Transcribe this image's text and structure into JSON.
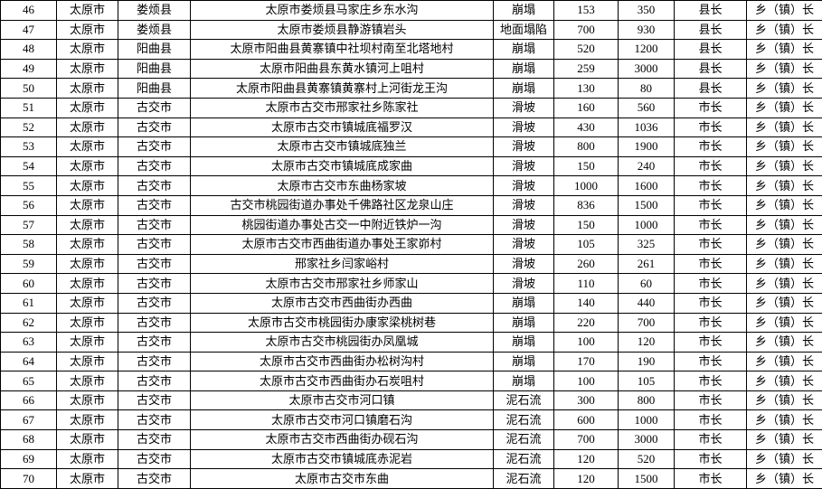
{
  "table": {
    "rows": [
      [
        46,
        "太原市",
        "娄烦县",
        "太原市娄烦县马家庄乡东水沟",
        "崩塌",
        153,
        350,
        "县长",
        "乡（镇）长"
      ],
      [
        47,
        "太原市",
        "娄烦县",
        "太原市娄烦县静游镇岩头",
        "地面塌陷",
        700,
        930,
        "县长",
        "乡（镇）长"
      ],
      [
        48,
        "太原市",
        "阳曲县",
        "太原市阳曲县黄寨镇中社坝村南至北塔地村",
        "崩塌",
        520,
        1200,
        "县长",
        "乡（镇）长"
      ],
      [
        49,
        "太原市",
        "阳曲县",
        "太原市阳曲县东黄水镇河上咀村",
        "崩塌",
        259,
        3000,
        "县长",
        "乡（镇）长"
      ],
      [
        50,
        "太原市",
        "阳曲县",
        "太原市阳曲县黄寨镇黄寨村上河街龙王沟",
        "崩塌",
        130,
        80,
        "县长",
        "乡（镇）长"
      ],
      [
        51,
        "太原市",
        "古交市",
        "太原市古交市邢家社乡陈家社",
        "滑坡",
        160,
        560,
        "市长",
        "乡（镇）长"
      ],
      [
        52,
        "太原市",
        "古交市",
        "太原市古交市镇城底福罗汉",
        "滑坡",
        430,
        1036,
        "市长",
        "乡（镇）长"
      ],
      [
        53,
        "太原市",
        "古交市",
        "太原市古交市镇城底独兰",
        "滑坡",
        800,
        1900,
        "市长",
        "乡（镇）长"
      ],
      [
        54,
        "太原市",
        "古交市",
        "太原市古交市镇城底成家曲",
        "滑坡",
        150,
        240,
        "市长",
        "乡（镇）长"
      ],
      [
        55,
        "太原市",
        "古交市",
        "太原市古交市东曲杨家坡",
        "滑坡",
        1000,
        1600,
        "市长",
        "乡（镇）长"
      ],
      [
        56,
        "太原市",
        "古交市",
        "古交市桃园街道办事处千佛路社区龙泉山庄",
        "滑坡",
        836,
        1500,
        "市长",
        "乡（镇）长"
      ],
      [
        57,
        "太原市",
        "古交市",
        "桃园街道办事处古交一中附近铁炉一沟",
        "滑坡",
        150,
        1000,
        "市长",
        "乡（镇）长"
      ],
      [
        58,
        "太原市",
        "古交市",
        "太原市古交市西曲街道办事处王家峁村",
        "滑坡",
        105,
        325,
        "市长",
        "乡（镇）长"
      ],
      [
        59,
        "太原市",
        "古交市",
        "邢家社乡闫家峪村",
        "滑坡",
        260,
        261,
        "市长",
        "乡（镇）长"
      ],
      [
        60,
        "太原市",
        "古交市",
        "太原市古交市邢家社乡师家山",
        "滑坡",
        110,
        60,
        "市长",
        "乡（镇）长"
      ],
      [
        61,
        "太原市",
        "古交市",
        "太原市古交市西曲街办西曲",
        "崩塌",
        140,
        440,
        "市长",
        "乡（镇）长"
      ],
      [
        62,
        "太原市",
        "古交市",
        "太原市古交市桃园街办康家梁桃树巷",
        "崩塌",
        220,
        700,
        "市长",
        "乡（镇）长"
      ],
      [
        63,
        "太原市",
        "古交市",
        "太原市古交市桃园街办凤凰城",
        "崩塌",
        100,
        120,
        "市长",
        "乡（镇）长"
      ],
      [
        64,
        "太原市",
        "古交市",
        "太原市古交市西曲街办松树沟村",
        "崩塌",
        170,
        190,
        "市长",
        "乡（镇）长"
      ],
      [
        65,
        "太原市",
        "古交市",
        "太原市古交市西曲街办石炭咀村",
        "崩塌",
        100,
        105,
        "市长",
        "乡（镇）长"
      ],
      [
        66,
        "太原市",
        "古交市",
        "太原市古交市河口镇",
        "泥石流",
        300,
        800,
        "市长",
        "乡（镇）长"
      ],
      [
        67,
        "太原市",
        "古交市",
        "太原市古交市河口镇磨石沟",
        "泥石流",
        600,
        1000,
        "市长",
        "乡（镇）长"
      ],
      [
        68,
        "太原市",
        "古交市",
        "太原市古交市西曲街办砚石沟",
        "泥石流",
        700,
        3000,
        "市长",
        "乡（镇）长"
      ],
      [
        69,
        "太原市",
        "古交市",
        "太原市古交市镇城底赤泥岩",
        "泥石流",
        120,
        520,
        "市长",
        "乡（镇）长"
      ],
      [
        70,
        "太原市",
        "古交市",
        "太原市古交市东曲",
        "泥石流",
        120,
        1500,
        "市长",
        "乡（镇）长"
      ]
    ]
  }
}
